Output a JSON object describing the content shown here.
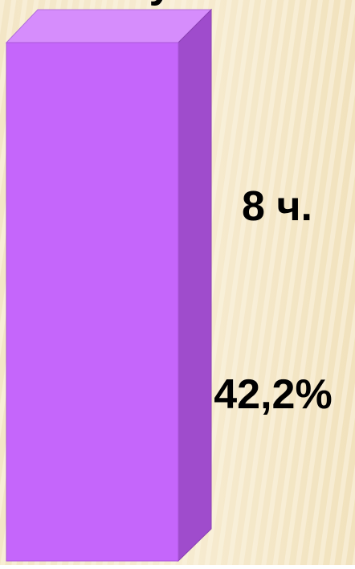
{
  "top_text": "у",
  "labels": {
    "hours": "8 ч.",
    "percent": "42,2%"
  }
}
